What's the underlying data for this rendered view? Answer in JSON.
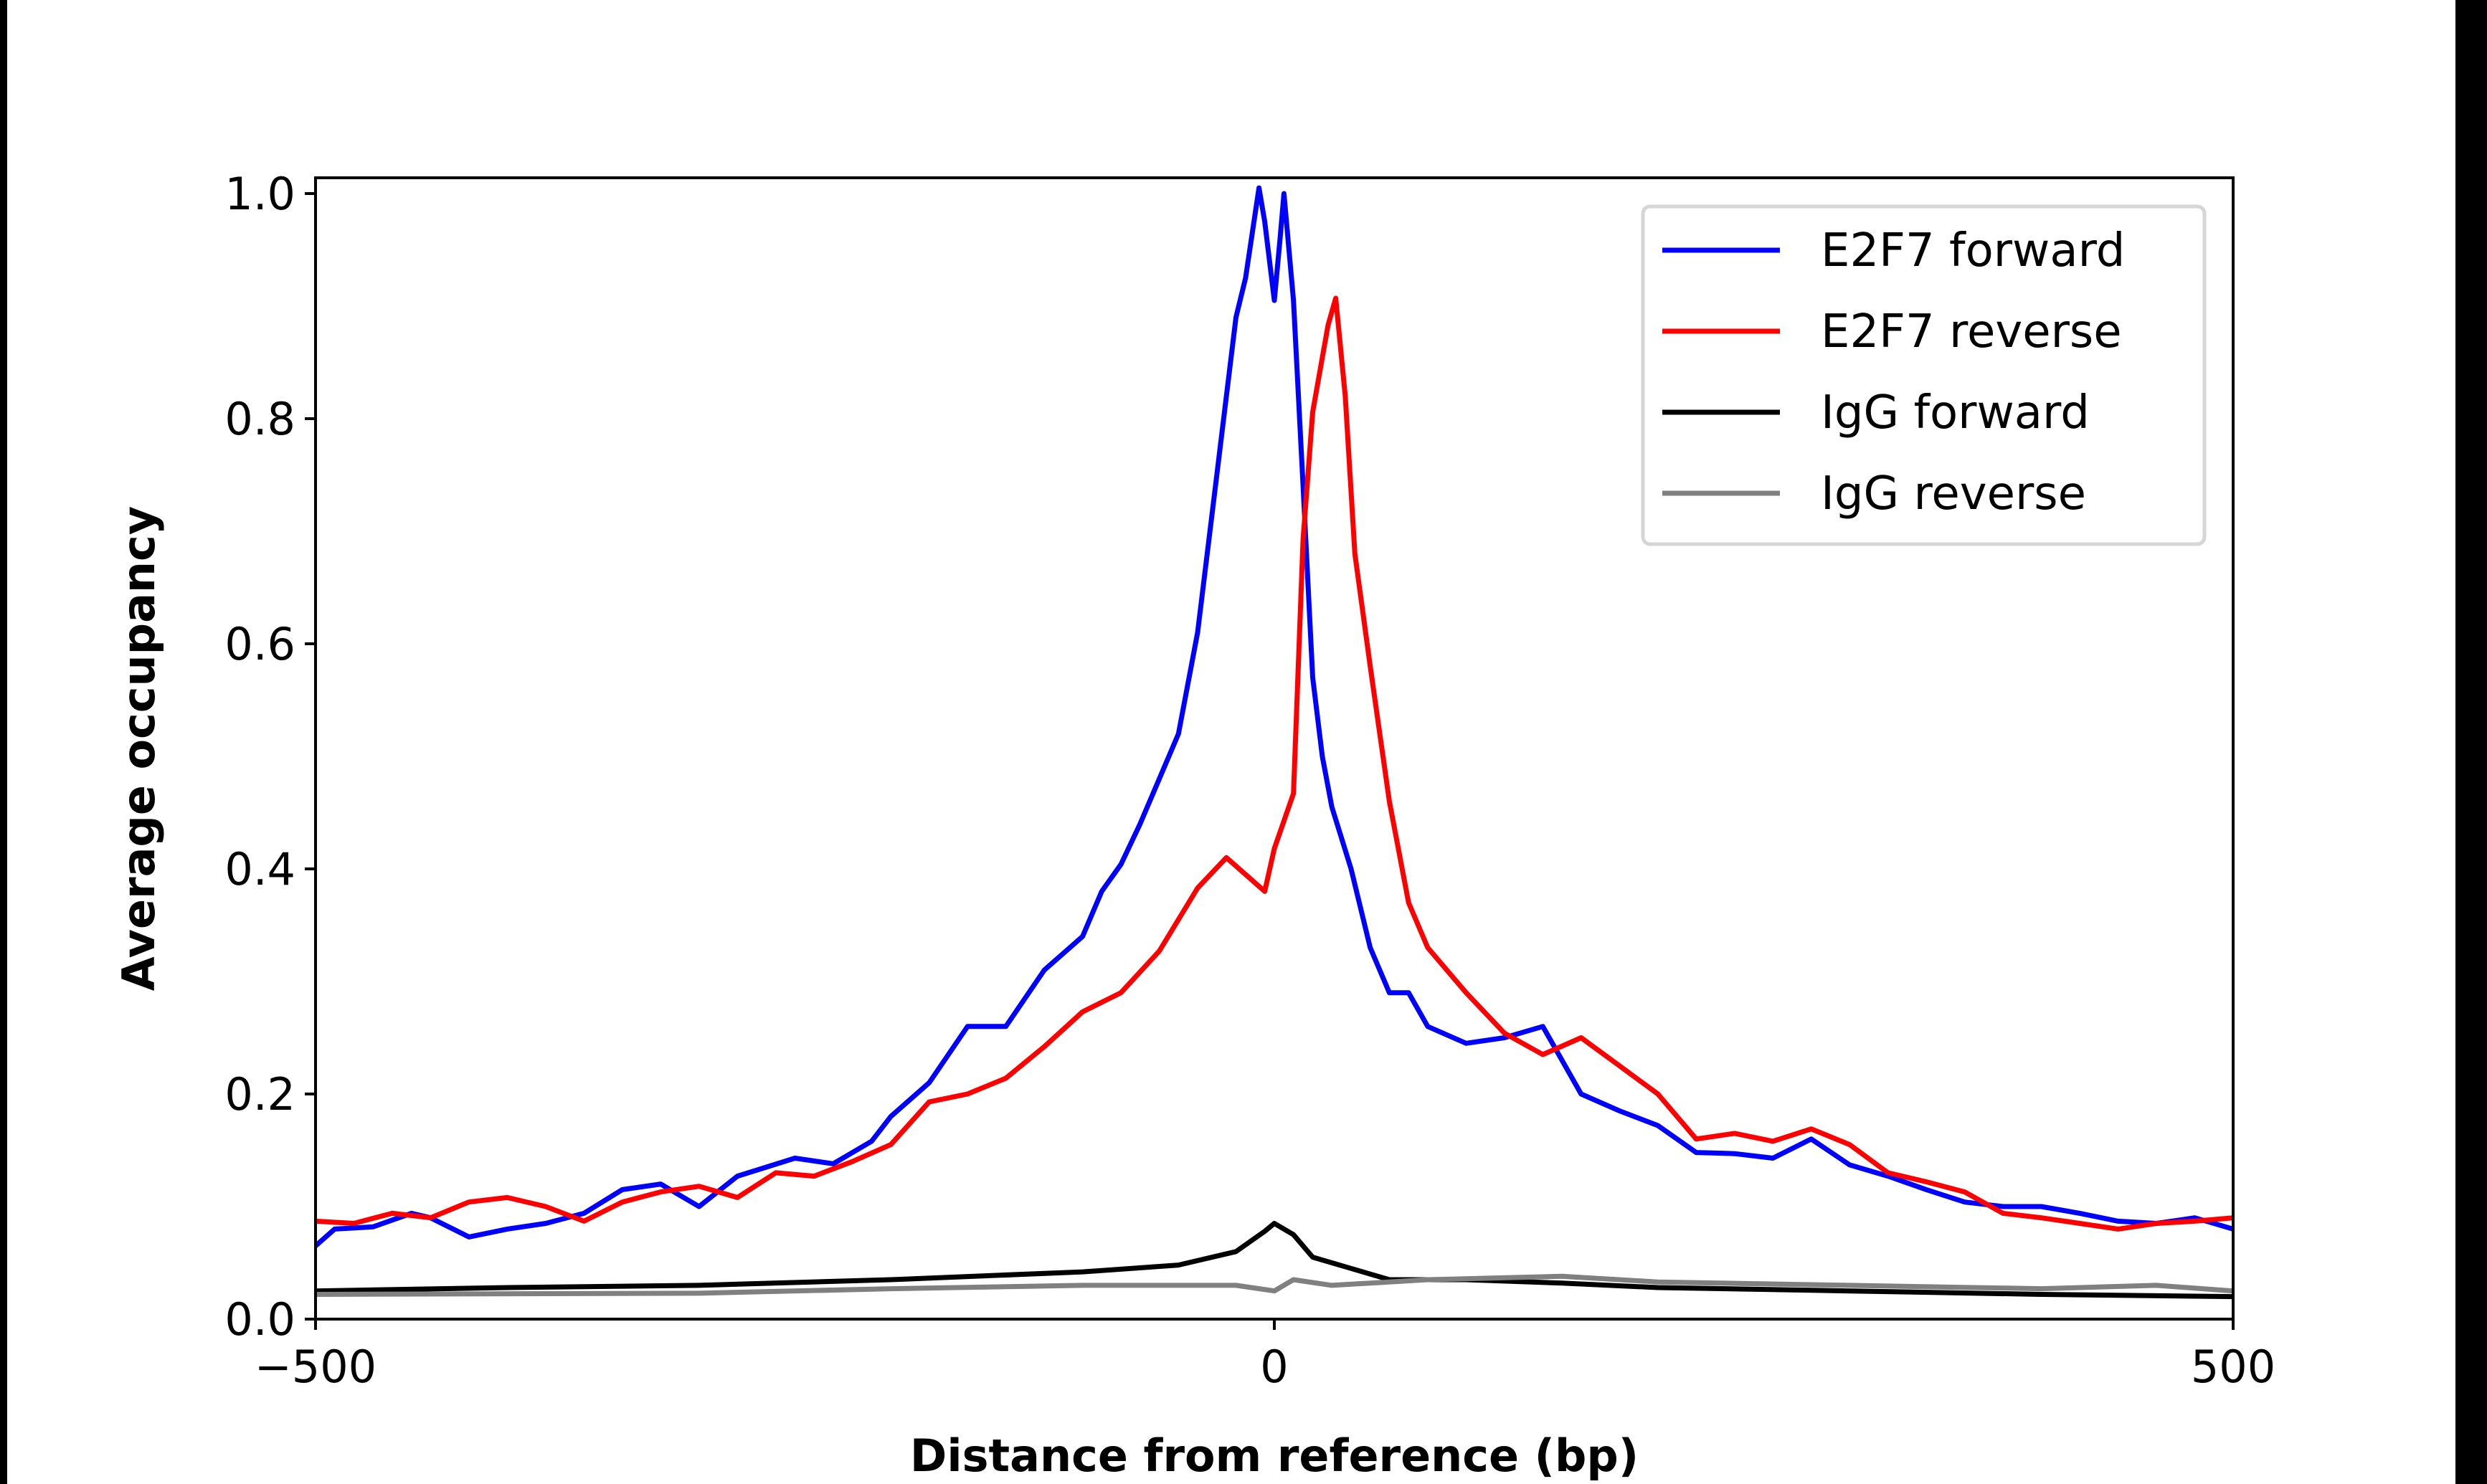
{
  "chart_data": {
    "type": "line",
    "title": "",
    "xlabel": "Distance from reference (bp)",
    "ylabel": "Average occupancy",
    "xlim": [
      -500,
      500
    ],
    "ylim": [
      0,
      1.014
    ],
    "xticks": [
      -500,
      0,
      500
    ],
    "xtick_labels": [
      "−500",
      "0",
      "500"
    ],
    "yticks": [
      0,
      0.2,
      0.4,
      0.6,
      0.8,
      1.0
    ],
    "ytick_labels": [
      "0.0",
      "0.2",
      "0.4",
      "0.6",
      "0.8",
      "1.0"
    ],
    "grid": false,
    "legend_position": "top-right",
    "series": [
      {
        "name": "E2F7 forward",
        "color": "#0000ff",
        "x": [
          -500,
          -490,
          -470,
          -450,
          -440,
          -420,
          -400,
          -380,
          -360,
          -340,
          -320,
          -300,
          -280,
          -250,
          -230,
          -210,
          -200,
          -180,
          -160,
          -140,
          -120,
          -100,
          -90,
          -80,
          -70,
          -60,
          -50,
          -40,
          -30,
          -20,
          -15,
          -8,
          -5,
          0,
          3,
          5,
          10,
          15,
          20,
          25,
          30,
          40,
          50,
          60,
          70,
          80,
          100,
          120,
          140,
          160,
          180,
          200,
          220,
          240,
          260,
          280,
          300,
          320,
          340,
          360,
          380,
          400,
          420,
          440,
          460,
          480,
          500
        ],
        "y": [
          0.065,
          0.08,
          0.082,
          0.094,
          0.09,
          0.073,
          0.08,
          0.085,
          0.094,
          0.115,
          0.12,
          0.1,
          0.127,
          0.143,
          0.138,
          0.158,
          0.18,
          0.21,
          0.26,
          0.26,
          0.31,
          0.34,
          0.38,
          0.404,
          0.44,
          0.48,
          0.52,
          0.61,
          0.75,
          0.89,
          0.925,
          1.005,
          0.975,
          0.905,
          0.96,
          1.0,
          0.905,
          0.74,
          0.57,
          0.5,
          0.455,
          0.4,
          0.33,
          0.29,
          0.29,
          0.26,
          0.245,
          0.25,
          0.26,
          0.2,
          0.185,
          0.172,
          0.148,
          0.147,
          0.143,
          0.16,
          0.137,
          0.127,
          0.115,
          0.104,
          0.1,
          0.1,
          0.094,
          0.087,
          0.085,
          0.09,
          0.08
        ]
      },
      {
        "name": "E2F7 reverse",
        "color": "#ff0000",
        "x": [
          -500,
          -480,
          -460,
          -440,
          -420,
          -400,
          -380,
          -360,
          -340,
          -320,
          -300,
          -280,
          -260,
          -240,
          -220,
          -200,
          -180,
          -160,
          -140,
          -120,
          -100,
          -80,
          -60,
          -40,
          -25,
          -5,
          0,
          10,
          15,
          20,
          28,
          32,
          37,
          42,
          50,
          60,
          70,
          80,
          100,
          120,
          140,
          160,
          180,
          200,
          220,
          240,
          260,
          280,
          300,
          320,
          340,
          360,
          380,
          400,
          420,
          440,
          460,
          480,
          500
        ],
        "y": [
          0.087,
          0.085,
          0.094,
          0.09,
          0.104,
          0.108,
          0.1,
          0.087,
          0.104,
          0.113,
          0.118,
          0.108,
          0.13,
          0.127,
          0.14,
          0.155,
          0.193,
          0.2,
          0.214,
          0.242,
          0.273,
          0.29,
          0.327,
          0.383,
          0.41,
          0.38,
          0.418,
          0.467,
          0.693,
          0.806,
          0.883,
          0.907,
          0.82,
          0.68,
          0.58,
          0.46,
          0.37,
          0.33,
          0.29,
          0.254,
          0.235,
          0.25,
          0.225,
          0.2,
          0.16,
          0.165,
          0.158,
          0.169,
          0.155,
          0.13,
          0.122,
          0.113,
          0.094,
          0.09,
          0.085,
          0.08,
          0.085,
          0.087,
          0.09
        ]
      },
      {
        "name": "IgG forward",
        "color": "#000000",
        "x": [
          -500,
          -400,
          -300,
          -200,
          -100,
          -50,
          -20,
          -5,
          0,
          10,
          20,
          40,
          60,
          100,
          150,
          200,
          300,
          400,
          500
        ],
        "y": [
          0.025,
          0.028,
          0.03,
          0.035,
          0.042,
          0.048,
          0.06,
          0.078,
          0.085,
          0.075,
          0.055,
          0.045,
          0.035,
          0.035,
          0.032,
          0.028,
          0.025,
          0.022,
          0.02
        ]
      },
      {
        "name": "IgG reverse",
        "color": "#808080",
        "x": [
          -500,
          -300,
          -200,
          -100,
          -20,
          0,
          10,
          30,
          80,
          150,
          200,
          300,
          400,
          460,
          500
        ],
        "y": [
          0.022,
          0.023,
          0.027,
          0.03,
          0.03,
          0.025,
          0.035,
          0.03,
          0.035,
          0.038,
          0.033,
          0.03,
          0.027,
          0.03,
          0.025
        ]
      }
    ]
  }
}
